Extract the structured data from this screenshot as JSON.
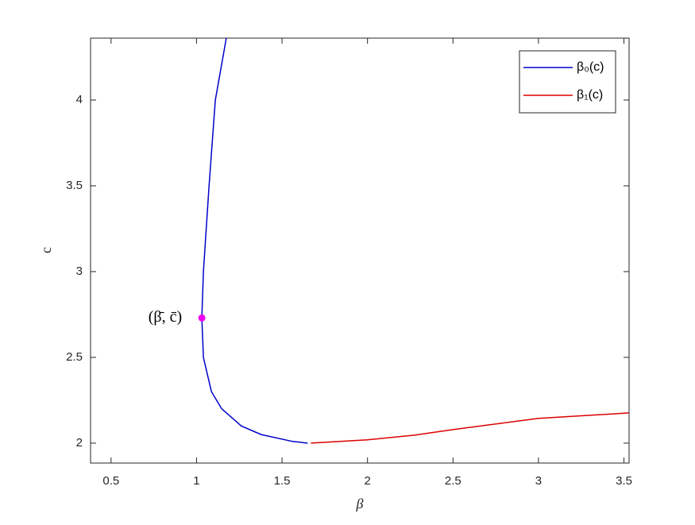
{
  "chart_data": {
    "type": "line",
    "xlabel": "β",
    "ylabel": "c",
    "xlim": [
      0.38,
      3.53
    ],
    "ylim": [
      1.884,
      4.361
    ],
    "xticks": [
      0.5,
      1,
      1.5,
      2,
      2.5,
      3,
      3.5
    ],
    "yticks": [
      2,
      2.5,
      3,
      3.5,
      4
    ],
    "legend": "top-right",
    "series": [
      {
        "name": "β₀(c)",
        "color": "#0000cc",
        "x": [
          1.174,
          1.11,
          1.073,
          1.04,
          1.031,
          1.04,
          1.087,
          1.147,
          1.262,
          1.378,
          1.562,
          1.65
        ],
        "values": [
          4.361,
          4.0,
          3.5,
          3.0,
          2.73,
          2.5,
          2.3,
          2.2,
          2.1,
          2.05,
          2.01,
          2.0
        ]
      },
      {
        "name": "β₁(c)",
        "color": "#dd0000",
        "x": [
          1.669,
          2.0,
          2.27,
          2.5,
          3.0,
          3.528
        ],
        "values": [
          2.0,
          2.019,
          2.046,
          2.079,
          2.144,
          2.176
        ]
      }
    ],
    "annotation": {
      "text": "(β̄, c̄)",
      "x": 1.031,
      "y": 2.73,
      "color": "#ee00ee"
    }
  }
}
